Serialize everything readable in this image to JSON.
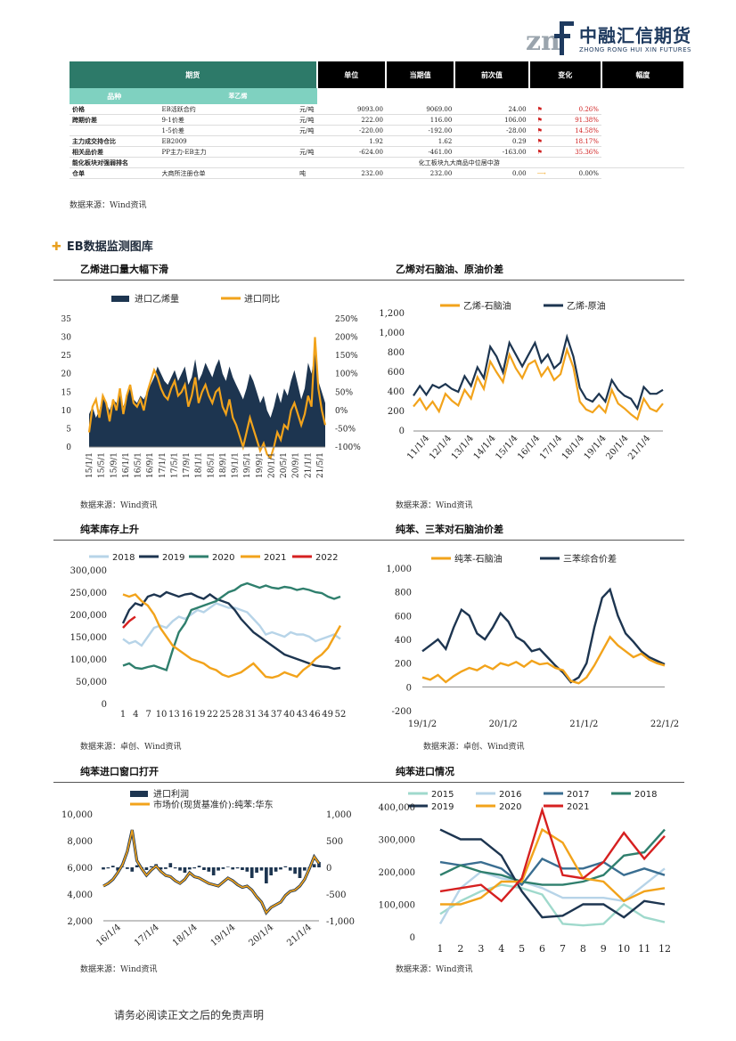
{
  "logo": {
    "mark": "znf",
    "cn": "中融汇信期货",
    "en": "ZHONG RONG HUI XIN FUTURES"
  },
  "table": {
    "headers": [
      "期货",
      "单位",
      "当期值",
      "前次值",
      "变化",
      "幅度"
    ],
    "category": "品种",
    "subcategory": "苯乙烯",
    "rows": [
      {
        "label": "价格",
        "item": "EB活跃合约",
        "unit": "元/吨",
        "cur": "9093.00",
        "prev": "9069.00",
        "chg": "24.00",
        "flag": true,
        "pct": "0.26%"
      },
      {
        "label": "跨期价差",
        "item": "9-1价差",
        "unit": "元/吨",
        "cur": "222.00",
        "prev": "116.00",
        "chg": "106.00",
        "flag": true,
        "pct": "91.38%"
      },
      {
        "label": "",
        "item": "1-5价差",
        "unit": "元/吨",
        "cur": "-220.00",
        "prev": "-192.00",
        "chg": "-28.00",
        "flag": true,
        "pct": "14.58%"
      },
      {
        "label": "主力成交持仓比",
        "item": "EB2009",
        "unit": "",
        "cur": "1.92",
        "prev": "1.62",
        "chg": "0.29",
        "flag": true,
        "pct": "18.17%"
      },
      {
        "label": "相关品价差",
        "item": "PP主力-EB主力",
        "unit": "元/吨",
        "cur": "-624.00",
        "prev": "-461.00",
        "chg": "-163.00",
        "flag": true,
        "pct": "35.36%"
      },
      {
        "label": "能化板块对强弱排名",
        "item": "",
        "unit": "",
        "cur": "",
        "prev": "化工板块九大商品中位居中游",
        "chg": "",
        "flag": false,
        "pct": ""
      },
      {
        "label": "仓单",
        "item": "大商所注册仓单",
        "unit": "吨",
        "cur": "232.00",
        "prev": "232.00",
        "chg": "0.00",
        "flag": false,
        "arrow": "⟶",
        "pct": "0.00%"
      }
    ]
  },
  "source_wind": "数据来源：Wind资讯",
  "source_zc": "数据来源：卓创、Wind资讯",
  "section_title": "EB数据监测图库",
  "footer": "请务必阅读正文之后的免责声明",
  "colors": {
    "navy": "#1d3550",
    "orange": "#f2a31b",
    "teal": "#2f7f6d",
    "lightblue": "#b7d4e8",
    "red": "#d62020",
    "blue": "#3a6e91",
    "mint": "#9fd9cc"
  },
  "charts": [
    {
      "id": "c1",
      "title": "乙烯进口量大幅下滑"
    },
    {
      "id": "c2",
      "title": "乙烯对石脑油、原油价差"
    },
    {
      "id": "c3",
      "title": "纯苯库存上升"
    },
    {
      "id": "c4",
      "title": "纯苯、三苯对石脑油价差"
    },
    {
      "id": "c5",
      "title": "纯苯进口窗口打开"
    },
    {
      "id": "c6",
      "title": "纯苯进口情况"
    }
  ],
  "chart_data": [
    {
      "type": "area",
      "title": "乙烯进口量大幅下滑",
      "series": [
        {
          "name": "进口乙烯量",
          "axis": "left",
          "kind": "area",
          "values": [
            9,
            11,
            8,
            10,
            14,
            12,
            10,
            13,
            12,
            15,
            11,
            14,
            16,
            13,
            12,
            14,
            13,
            15,
            17,
            19,
            22,
            20,
            18,
            17,
            19,
            21,
            18,
            20,
            22,
            17,
            19,
            24,
            18,
            20,
            23,
            21,
            19,
            22,
            24,
            20,
            18,
            22,
            19,
            17,
            15,
            13,
            16,
            20,
            18,
            15,
            12,
            14,
            10,
            8,
            11,
            15,
            12,
            16,
            14,
            18,
            21,
            17,
            13,
            16,
            23,
            20,
            26,
            18,
            15,
            12
          ]
        },
        {
          "name": "进口同比",
          "axis": "right",
          "kind": "line",
          "values": [
            -60,
            10,
            30,
            -20,
            40,
            20,
            -30,
            30,
            0,
            60,
            -10,
            40,
            70,
            20,
            10,
            30,
            0,
            50,
            80,
            110,
            90,
            60,
            40,
            30,
            60,
            80,
            40,
            50,
            70,
            10,
            40,
            90,
            20,
            50,
            70,
            40,
            20,
            50,
            60,
            10,
            -10,
            30,
            -20,
            -40,
            -70,
            -100,
            -60,
            -20,
            -50,
            -80,
            -110,
            -90,
            -120,
            -130,
            -100,
            -60,
            -80,
            -40,
            -50,
            0,
            20,
            -10,
            -40,
            -10,
            40,
            10,
            200,
            60,
            0,
            -40
          ]
        }
      ],
      "x_ticks": [
        "15/1/1",
        "15/5/1",
        "15/9/1",
        "16/1/1",
        "16/5/1",
        "16/9/1",
        "17/1/1",
        "17/5/1",
        "17/9/1",
        "18/1/1",
        "18/5/1",
        "18/9/1",
        "19/1/1",
        "19/5/1",
        "19/9/1",
        "20/1/1",
        "20/5/1",
        "20/9/1",
        "21/1/1",
        "21/5/1"
      ],
      "ylim_left": [
        0,
        35
      ],
      "yticks_left": [
        "35",
        "30",
        "25",
        "20",
        "15",
        "10",
        "5",
        "0"
      ],
      "ylim_right": [
        -100,
        250
      ],
      "yticks_right": [
        "250%",
        "200%",
        "150%",
        "100%",
        "50%",
        "0%",
        "-50%",
        "-100%"
      ]
    },
    {
      "type": "line",
      "title": "乙烯对石脑油、原油价差",
      "series": [
        {
          "name": "乙烯-石脑油",
          "values": [
            250,
            330,
            220,
            300,
            200,
            380,
            310,
            260,
            420,
            330,
            550,
            430,
            710,
            600,
            500,
            780,
            640,
            540,
            680,
            720,
            560,
            650,
            520,
            580,
            830,
            650,
            300,
            220,
            190,
            260,
            190,
            420,
            280,
            230,
            170,
            120,
            330,
            230,
            200,
            280
          ]
        },
        {
          "name": "乙烯-原油",
          "values": [
            360,
            460,
            370,
            470,
            440,
            480,
            430,
            400,
            560,
            460,
            650,
            540,
            860,
            760,
            600,
            900,
            780,
            660,
            780,
            900,
            700,
            780,
            640,
            700,
            960,
            760,
            440,
            330,
            300,
            380,
            300,
            520,
            420,
            360,
            330,
            230,
            450,
            380,
            380,
            420
          ]
        }
      ],
      "x_ticks": [
        "11/1/4",
        "12/1/4",
        "13/1/4",
        "14/1/4",
        "15/1/4",
        "16/1/4",
        "17/1/4",
        "18/1/4",
        "19/1/4",
        "20/1/4",
        "21/1/4"
      ],
      "ylim": [
        0,
        1200
      ],
      "yticks": [
        "1,200",
        "1,000",
        "800",
        "600",
        "400",
        "200",
        "0"
      ]
    },
    {
      "type": "line",
      "title": "纯苯库存上升",
      "series": [
        {
          "name": "2018",
          "values": [
            145000,
            135000,
            140000,
            130000,
            150000,
            170000,
            175000,
            170000,
            185000,
            195000,
            190000,
            200000,
            210000,
            205000,
            215000,
            225000,
            220000,
            215000,
            215000,
            210000,
            205000,
            190000,
            175000,
            155000,
            160000,
            155000,
            150000,
            160000,
            155000,
            155000,
            150000,
            140000,
            145000,
            150000,
            155000,
            145000
          ]
        },
        {
          "name": "2019",
          "values": [
            180000,
            210000,
            225000,
            220000,
            240000,
            245000,
            240000,
            250000,
            245000,
            240000,
            245000,
            247000,
            240000,
            235000,
            245000,
            235000,
            230000,
            225000,
            210000,
            190000,
            175000,
            160000,
            150000,
            140000,
            130000,
            120000,
            110000,
            105000,
            100000,
            95000,
            90000,
            85000,
            83000,
            82000,
            78000,
            80000
          ]
        },
        {
          "name": "2020",
          "values": [
            85000,
            90000,
            80000,
            78000,
            82000,
            85000,
            80000,
            75000,
            120000,
            160000,
            180000,
            210000,
            215000,
            220000,
            225000,
            230000,
            240000,
            250000,
            255000,
            265000,
            270000,
            265000,
            260000,
            265000,
            260000,
            258000,
            262000,
            260000,
            255000,
            258000,
            255000,
            250000,
            248000,
            240000,
            235000,
            240000
          ]
        },
        {
          "name": "2021",
          "values": [
            245000,
            240000,
            245000,
            230000,
            220000,
            200000,
            170000,
            150000,
            130000,
            120000,
            110000,
            100000,
            95000,
            90000,
            80000,
            75000,
            65000,
            60000,
            65000,
            70000,
            80000,
            90000,
            75000,
            60000,
            58000,
            62000,
            70000,
            65000,
            60000,
            75000,
            85000,
            100000,
            110000,
            125000,
            150000,
            175000
          ]
        },
        {
          "name": "2022",
          "values": [
            170000,
            185000,
            195000
          ]
        }
      ],
      "x_ticks": [
        "1",
        "4",
        "7",
        "10",
        "13",
        "16",
        "19",
        "22",
        "25",
        "28",
        "31",
        "34",
        "37",
        "40",
        "43",
        "46",
        "49",
        "52"
      ],
      "ylim": [
        0,
        300000
      ],
      "yticks": [
        "300,000",
        "250,000",
        "200,000",
        "150,000",
        "100,000",
        "50,000",
        "0"
      ]
    },
    {
      "type": "line",
      "title": "纯苯、三苯对石脑油价差",
      "series": [
        {
          "name": "纯苯-石脑油",
          "values": [
            80,
            60,
            100,
            40,
            90,
            130,
            160,
            140,
            180,
            150,
            200,
            180,
            210,
            170,
            220,
            190,
            200,
            160,
            140,
            50,
            30,
            80,
            180,
            300,
            420,
            350,
            300,
            250,
            280,
            230,
            200,
            180
          ]
        },
        {
          "name": "三苯综合价差",
          "values": [
            300,
            350,
            400,
            320,
            500,
            650,
            600,
            450,
            400,
            500,
            620,
            550,
            420,
            380,
            300,
            320,
            250,
            180,
            120,
            40,
            80,
            200,
            500,
            750,
            820,
            600,
            450,
            380,
            300,
            250,
            220,
            190
          ]
        }
      ],
      "x_ticks": [
        "19/1/2",
        "20/1/2",
        "21/1/2",
        "22/1/2"
      ],
      "ylim": [
        -200,
        1000
      ],
      "yticks": [
        "1,000",
        "800",
        "600",
        "400",
        "200",
        "0",
        "-200"
      ]
    },
    {
      "type": "line",
      "title": "纯苯进口窗口打开",
      "series": [
        {
          "name": "进口利润",
          "axis": "right",
          "kind": "bar",
          "values": [
            -40,
            -20,
            30,
            -60,
            10,
            -30,
            -80,
            40,
            -20,
            -50,
            20,
            60,
            -40,
            -30,
            80,
            -20,
            -60,
            -100,
            -40,
            -20,
            30,
            -50,
            -80,
            -150,
            -60,
            -30,
            10,
            -40,
            -20,
            -50,
            -80,
            -200,
            -100,
            -60,
            -300,
            -150,
            -80,
            -40,
            20,
            -60,
            -120,
            -200,
            -60,
            -20,
            60,
            100
          ]
        },
        {
          "name": "市场价(现货基准价):纯苯:华东",
          "axis": "left",
          "kind": "line",
          "values": [
            4600,
            4800,
            5100,
            5600,
            6200,
            7200,
            8800,
            6500,
            5900,
            5400,
            5800,
            6100,
            5700,
            5400,
            5300,
            5000,
            4800,
            5100,
            5600,
            5300,
            5200,
            5000,
            4800,
            4700,
            4600,
            4900,
            5200,
            5000,
            4700,
            4500,
            4600,
            4300,
            3800,
            3400,
            2600,
            3000,
            3200,
            3400,
            3900,
            4200,
            4300,
            4600,
            5100,
            5900,
            6800,
            6300
          ]
        }
      ],
      "x_ticks": [
        "16/1/4",
        "17/1/4",
        "18/1/4",
        "19/1/4",
        "20/1/4",
        "21/1/4"
      ],
      "ylim_left": [
        2000,
        10000
      ],
      "yticks_left": [
        "10,000",
        "8,000",
        "6,000",
        "4,000",
        "2,000"
      ],
      "ylim_right": [
        -1000,
        1000
      ],
      "yticks_right": [
        "1,000",
        "500",
        "0",
        "-500",
        "-1,000"
      ]
    },
    {
      "type": "line",
      "title": "纯苯进口情况",
      "categories": [
        "1",
        "2",
        "3",
        "4",
        "5",
        "6",
        "7",
        "8",
        "9",
        "10",
        "11",
        "12"
      ],
      "series": [
        {
          "name": "2015",
          "values": [
            70000,
            110000,
            140000,
            160000,
            150000,
            130000,
            40000,
            35000,
            40000,
            100000,
            60000,
            45000
          ]
        },
        {
          "name": "2016",
          "values": [
            40000,
            150000,
            200000,
            180000,
            170000,
            150000,
            120000,
            120000,
            120000,
            110000,
            160000,
            210000
          ]
        },
        {
          "name": "2017",
          "values": [
            230000,
            220000,
            230000,
            210000,
            160000,
            240000,
            210000,
            210000,
            230000,
            190000,
            210000,
            190000
          ]
        },
        {
          "name": "2018",
          "values": [
            190000,
            220000,
            200000,
            190000,
            170000,
            160000,
            160000,
            170000,
            190000,
            250000,
            260000,
            330000
          ]
        },
        {
          "name": "2019",
          "values": [
            330000,
            300000,
            300000,
            250000,
            140000,
            60000,
            65000,
            100000,
            100000,
            60000,
            110000,
            100000
          ]
        },
        {
          "name": "2020",
          "values": [
            100000,
            100000,
            120000,
            170000,
            170000,
            330000,
            290000,
            180000,
            170000,
            110000,
            140000,
            150000
          ]
        },
        {
          "name": "2021",
          "values": [
            140000,
            150000,
            160000,
            110000,
            180000,
            390000,
            190000,
            180000,
            230000,
            320000,
            240000,
            310000
          ]
        }
      ],
      "ylim": [
        0,
        400000
      ],
      "yticks": [
        "400,000",
        "300,000",
        "200,000",
        "100,000",
        "0"
      ]
    }
  ]
}
